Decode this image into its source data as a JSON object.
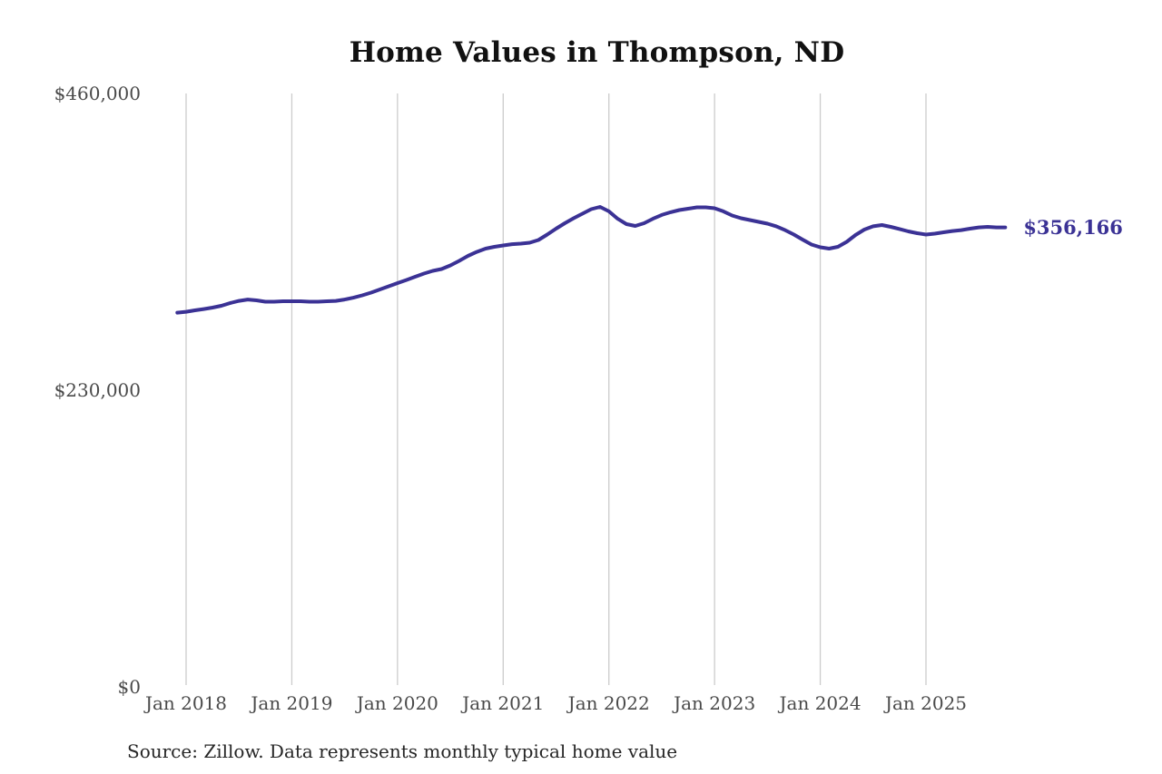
{
  "chart_data": {
    "type": "line",
    "title": "Home Values in Thompson, ND",
    "source_note": "Source: Zillow. Data represents monthly typical home value",
    "end_label": "$356,166",
    "final_value": 356166,
    "xlabel": "",
    "ylabel": "",
    "ylim": [
      0,
      460000
    ],
    "grid": "vertical-yearly-gridlines",
    "legend": "none",
    "line_color": "#3b3295",
    "gridline_color": "#cccccc",
    "tick_label_color": "#4a4a4a",
    "y_ticks": [
      {
        "value": 460000,
        "label": "$460,000"
      },
      {
        "value": 230000,
        "label": "$230,000"
      },
      {
        "value": 0,
        "label": "$0"
      }
    ],
    "x_ticks": [
      {
        "month": "2018-01",
        "label": "Jan 2018"
      },
      {
        "month": "2019-01",
        "label": "Jan 2019"
      },
      {
        "month": "2020-01",
        "label": "Jan 2020"
      },
      {
        "month": "2021-01",
        "label": "Jan 2021"
      },
      {
        "month": "2022-01",
        "label": "Jan 2022"
      },
      {
        "month": "2023-01",
        "label": "Jan 2023"
      },
      {
        "month": "2024-01",
        "label": "Jan 2024"
      },
      {
        "month": "2025-01",
        "label": "Jan 2025"
      }
    ],
    "series": [
      {
        "name": "Monthly typical home value",
        "points": [
          [
            "2017-12",
            290100
          ],
          [
            "2018-01",
            290800
          ],
          [
            "2018-02",
            291900
          ],
          [
            "2018-03",
            292900
          ],
          [
            "2018-04",
            294000
          ],
          [
            "2018-05",
            295400
          ],
          [
            "2018-06",
            297500
          ],
          [
            "2018-07",
            299200
          ],
          [
            "2018-08",
            300300
          ],
          [
            "2018-09",
            299600
          ],
          [
            "2018-10",
            298600
          ],
          [
            "2018-11",
            298600
          ],
          [
            "2018-12",
            298900
          ],
          [
            "2019-01",
            298900
          ],
          [
            "2019-02",
            298900
          ],
          [
            "2019-03",
            298600
          ],
          [
            "2019-04",
            298600
          ],
          [
            "2019-05",
            298900
          ],
          [
            "2019-06",
            299200
          ],
          [
            "2019-07",
            300300
          ],
          [
            "2019-08",
            301700
          ],
          [
            "2019-09",
            303500
          ],
          [
            "2019-10",
            305600
          ],
          [
            "2019-11",
            308100
          ],
          [
            "2019-12",
            310500
          ],
          [
            "2020-01",
            313000
          ],
          [
            "2020-02",
            315400
          ],
          [
            "2020-03",
            317900
          ],
          [
            "2020-04",
            320400
          ],
          [
            "2020-05",
            322500
          ],
          [
            "2020-06",
            323900
          ],
          [
            "2020-07",
            326700
          ],
          [
            "2020-08",
            330200
          ],
          [
            "2020-09",
            334100
          ],
          [
            "2020-10",
            337200
          ],
          [
            "2020-11",
            339700
          ],
          [
            "2020-12",
            341100
          ],
          [
            "2021-01",
            342200
          ],
          [
            "2021-02",
            343200
          ],
          [
            "2021-03",
            343600
          ],
          [
            "2021-04",
            344300
          ],
          [
            "2021-05",
            346400
          ],
          [
            "2021-06",
            350600
          ],
          [
            "2021-07",
            355200
          ],
          [
            "2021-08",
            359400
          ],
          [
            "2021-09",
            363300
          ],
          [
            "2021-10",
            366800
          ],
          [
            "2021-11",
            370300
          ],
          [
            "2021-12",
            372100
          ],
          [
            "2022-01",
            368600
          ],
          [
            "2022-02",
            362900
          ],
          [
            "2022-03",
            358700
          ],
          [
            "2022-04",
            357300
          ],
          [
            "2022-05",
            359400
          ],
          [
            "2022-06",
            362900
          ],
          [
            "2022-07",
            365800
          ],
          [
            "2022-08",
            367900
          ],
          [
            "2022-09",
            369600
          ],
          [
            "2022-10",
            370700
          ],
          [
            "2022-11",
            371700
          ],
          [
            "2022-12",
            371700
          ],
          [
            "2023-01",
            371000
          ],
          [
            "2023-02",
            368600
          ],
          [
            "2023-03",
            365400
          ],
          [
            "2023-04",
            363300
          ],
          [
            "2023-05",
            361900
          ],
          [
            "2023-06",
            360500
          ],
          [
            "2023-07",
            359100
          ],
          [
            "2023-08",
            357000
          ],
          [
            "2023-09",
            354100
          ],
          [
            "2023-10",
            350600
          ],
          [
            "2023-11",
            346700
          ],
          [
            "2023-12",
            342900
          ],
          [
            "2024-01",
            340800
          ],
          [
            "2024-02",
            339700
          ],
          [
            "2024-03",
            341100
          ],
          [
            "2024-04",
            345000
          ],
          [
            "2024-05",
            350300
          ],
          [
            "2024-06",
            354500
          ],
          [
            "2024-07",
            357000
          ],
          [
            "2024-08",
            358000
          ],
          [
            "2024-09",
            356600
          ],
          [
            "2024-10",
            354900
          ],
          [
            "2024-11",
            353100
          ],
          [
            "2024-12",
            351700
          ],
          [
            "2025-01",
            350600
          ],
          [
            "2025-02",
            351300
          ],
          [
            "2025-03",
            352400
          ],
          [
            "2025-04",
            353400
          ],
          [
            "2025-05",
            354100
          ],
          [
            "2025-06",
            355200
          ],
          [
            "2025-07",
            356200
          ],
          [
            "2025-08",
            356600
          ],
          [
            "2025-09",
            356200
          ],
          [
            "2025-10",
            356166
          ]
        ]
      }
    ]
  }
}
